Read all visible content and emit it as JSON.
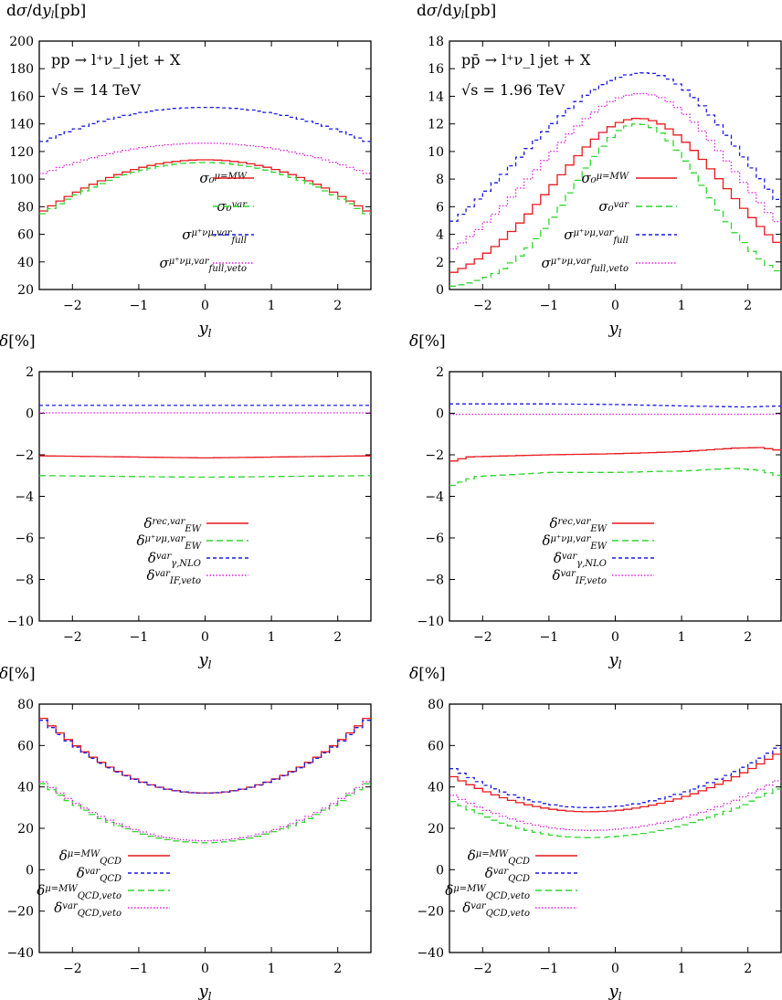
{
  "figure": {
    "panels_count": 6
  },
  "colors": {
    "red": "#e8191d",
    "green": "#2ed62e",
    "blue": "#1a1ae6",
    "magenta": "#e01ee0",
    "grey": "#888888"
  },
  "chart_data": [
    {
      "id": "top-left",
      "type": "line",
      "step": true,
      "ylabel": "dσ/dy_l[pb]",
      "xlabel": "y_l",
      "xlim": [
        -2.5,
        2.5
      ],
      "ylim": [
        20,
        200
      ],
      "xticks": [
        -2,
        -1,
        0,
        1,
        2
      ],
      "yticks": [
        20,
        40,
        60,
        80,
        100,
        120,
        140,
        160,
        180,
        200
      ],
      "annotations": [
        "pp → l⁺ν_l jet + X",
        "√s = 14 TeV"
      ],
      "legend_position": "center-right",
      "series": [
        {
          "name": "σ₀^(μ=M_W)",
          "color_key": "red",
          "dash": "solid",
          "kind": "para",
          "peak": 114,
          "edge": 75,
          "center": 0
        },
        {
          "name": "σ₀^var",
          "color_key": "green",
          "dash": "long",
          "kind": "para",
          "peak": 112,
          "edge": 73,
          "center": 0
        },
        {
          "name": "σ_full^(μ⁺ν_μ,var)",
          "color_key": "blue",
          "dash": "short",
          "kind": "para",
          "peak": 152,
          "edge": 126,
          "center": 0
        },
        {
          "name": "σ_full,veto^(μ⁺ν_μ,var)",
          "color_key": "magenta",
          "dash": "dot",
          "kind": "para",
          "peak": 126,
          "edge": 103,
          "center": 0
        }
      ]
    },
    {
      "id": "top-right",
      "type": "line",
      "step": true,
      "ylabel": "dσ/dy_l[pb]",
      "xlabel": "y_l",
      "xlim": [
        -2.5,
        2.5
      ],
      "ylim": [
        0,
        18
      ],
      "xticks": [
        -2,
        -1,
        0,
        1,
        2
      ],
      "yticks": [
        0,
        2,
        4,
        6,
        8,
        10,
        12,
        14,
        16,
        18
      ],
      "annotations": [
        "pp̄ → l⁺ν_l jet + X",
        "√s = 1.96 TeV"
      ],
      "legend_position": "center-right",
      "series": [
        {
          "name": "σ₀^(μ=M_W)",
          "color_key": "red",
          "dash": "solid",
          "kind": "bell",
          "peak": 12.4,
          "center": 0.35,
          "left": 1.3,
          "right": 1.3
        },
        {
          "name": "σ₀^var",
          "color_key": "green",
          "dash": "long",
          "kind": "bell",
          "peak": 12.0,
          "center": 0.35,
          "left": 1.0,
          "right": 1.0
        },
        {
          "name": "σ_full^(μ⁺ν_μ,var)",
          "color_key": "blue",
          "dash": "short",
          "kind": "bell",
          "peak": 15.7,
          "center": 0.45,
          "left": 1.9,
          "right": 1.5
        },
        {
          "name": "σ_full,veto^(μ⁺ν_μ,var)",
          "color_key": "magenta",
          "dash": "dot",
          "kind": "bell",
          "peak": 14.2,
          "center": 0.4,
          "left": 1.6,
          "right": 1.4
        }
      ]
    },
    {
      "id": "mid-left",
      "type": "line",
      "step": true,
      "ylabel": "δ[%]",
      "xlabel": "y_l",
      "xlim": [
        -2.5,
        2.5
      ],
      "ylim": [
        -10,
        2
      ],
      "xticks": [
        -2,
        -1,
        0,
        1,
        2
      ],
      "yticks": [
        -10,
        -8,
        -6,
        -4,
        -2,
        0,
        2
      ],
      "annotations": [],
      "legend_position": "bottom-center",
      "series": [
        {
          "name": "δ_EW^(rec,var)",
          "color_key": "red",
          "dash": "solid",
          "kind": "lin",
          "points": [
            [
              -2.5,
              -2.05
            ],
            [
              0,
              -2.15
            ],
            [
              2.5,
              -2.05
            ]
          ]
        },
        {
          "name": "δ_EW^(μ⁺ν_μ,var)",
          "color_key": "green",
          "dash": "long",
          "kind": "lin",
          "points": [
            [
              -2.5,
              -3.0
            ],
            [
              0,
              -3.08
            ],
            [
              2.5,
              -3.0
            ]
          ]
        },
        {
          "name": "δ_γ,NLO^var",
          "color_key": "blue",
          "dash": "short",
          "kind": "lin",
          "points": [
            [
              -2.5,
              0.38
            ],
            [
              2.5,
              0.38
            ]
          ]
        },
        {
          "name": "δ_IF,veto^var",
          "color_key": "magenta",
          "dash": "dot",
          "kind": "lin",
          "points": [
            [
              -2.5,
              0.02
            ],
            [
              2.5,
              0.02
            ]
          ]
        }
      ]
    },
    {
      "id": "mid-right",
      "type": "line",
      "step": true,
      "ylabel": "δ[%]",
      "xlabel": "y_l",
      "xlim": [
        -2.5,
        2.5
      ],
      "ylim": [
        -10,
        2
      ],
      "xticks": [
        -2,
        -1,
        0,
        1,
        2
      ],
      "yticks": [
        -10,
        -8,
        -6,
        -4,
        -2,
        0,
        2
      ],
      "annotations": [],
      "legend_position": "bottom-center",
      "series": [
        {
          "name": "δ_EW^(rec,var)",
          "color_key": "red",
          "dash": "solid",
          "kind": "lin",
          "points": [
            [
              -2.5,
              -2.35
            ],
            [
              -2.2,
              -2.1
            ],
            [
              -1,
              -2.0
            ],
            [
              0,
              -1.95
            ],
            [
              1,
              -1.85
            ],
            [
              1.8,
              -1.68
            ],
            [
              2.2,
              -1.65
            ],
            [
              2.5,
              -1.8
            ]
          ]
        },
        {
          "name": "δ_EW^(μ⁺ν_μ,var)",
          "color_key": "green",
          "dash": "long",
          "kind": "lin",
          "points": [
            [
              -2.5,
              -3.55
            ],
            [
              -2.1,
              -3.05
            ],
            [
              -1,
              -2.85
            ],
            [
              0,
              -2.85
            ],
            [
              1,
              -2.78
            ],
            [
              1.8,
              -2.65
            ],
            [
              2.2,
              -2.75
            ],
            [
              2.5,
              -3.05
            ]
          ]
        },
        {
          "name": "δ_γ,NLO^var",
          "color_key": "blue",
          "dash": "short",
          "kind": "lin",
          "points": [
            [
              -2.5,
              0.45
            ],
            [
              -1,
              0.45
            ],
            [
              0,
              0.42
            ],
            [
              1,
              0.35
            ],
            [
              2,
              0.3
            ],
            [
              2.5,
              0.35
            ]
          ]
        },
        {
          "name": "δ_IF,veto^var",
          "color_key": "magenta",
          "dash": "dot",
          "kind": "lin",
          "points": [
            [
              -2.5,
              -0.05
            ],
            [
              2.5,
              -0.05
            ]
          ]
        }
      ]
    },
    {
      "id": "bottom-left",
      "type": "line",
      "step": true,
      "ylabel": "δ[%]",
      "xlabel": "y_l",
      "xlim": [
        -2.5,
        2.5
      ],
      "ylim": [
        -40,
        80
      ],
      "xticks": [
        -2,
        -1,
        0,
        1,
        2
      ],
      "yticks": [
        -40,
        -20,
        0,
        20,
        40,
        60,
        80
      ],
      "annotations": [],
      "legend_position": "bottom-left",
      "series": [
        {
          "name": "δ_QCD^(μ=M_W)",
          "color_key": "red",
          "dash": "solid",
          "kind": "para",
          "peak": 37,
          "edge": 75,
          "center": 0
        },
        {
          "name": "δ_QCD^var",
          "color_key": "blue",
          "dash": "short",
          "kind": "para",
          "peak": 37,
          "edge": 74,
          "center": 0
        },
        {
          "name": "δ_QCD,veto^(μ=M_W)",
          "color_key": "green",
          "dash": "long",
          "kind": "para",
          "peak": 13,
          "edge": 43,
          "center": 0
        },
        {
          "name": "δ_QCD,veto^var",
          "color_key": "magenta",
          "dash": "dot",
          "kind": "para",
          "peak": 14,
          "edge": 44,
          "center": 0
        }
      ]
    },
    {
      "id": "bottom-right",
      "type": "line",
      "step": true,
      "ylabel": "δ[%]",
      "xlabel": "y_l",
      "xlim": [
        -2.5,
        2.5
      ],
      "ylim": [
        -40,
        80
      ],
      "xticks": [
        -2,
        -1,
        0,
        1,
        2
      ],
      "yticks": [
        -40,
        -20,
        0,
        20,
        40,
        60,
        80
      ],
      "annotations": [],
      "legend_position": "bottom-left",
      "series": [
        {
          "name": "δ_QCD^(μ=M_W)",
          "color_key": "red",
          "dash": "solid",
          "kind": "para2",
          "peak": 28,
          "center": -0.4,
          "l": 46,
          "r": 57
        },
        {
          "name": "δ_QCD^var",
          "color_key": "blue",
          "dash": "short",
          "kind": "para2",
          "peak": 30,
          "center": -0.4,
          "l": 50,
          "r": 60
        },
        {
          "name": "δ_QCD,veto^(μ=M_W)",
          "color_key": "green",
          "dash": "long",
          "kind": "para2",
          "peak": 15.5,
          "center": -0.4,
          "l": 34,
          "r": 40
        },
        {
          "name": "δ_QCD,veto^var",
          "color_key": "magenta",
          "dash": "dot",
          "kind": "para2",
          "peak": 19,
          "center": -0.4,
          "l": 37,
          "r": 44
        }
      ]
    }
  ]
}
